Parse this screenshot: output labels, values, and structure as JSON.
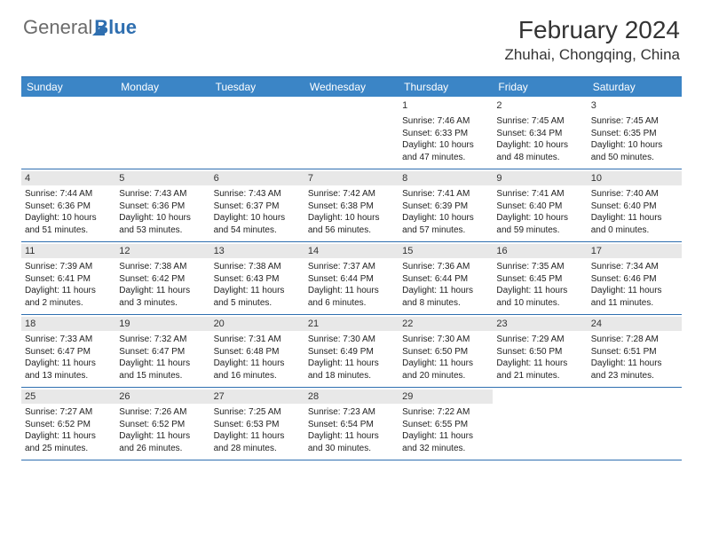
{
  "logo": {
    "text1": "General",
    "text2": "Blue"
  },
  "title": "February 2024",
  "location": "Zhuhai, Chongqing, China",
  "colors": {
    "header_bg": "#3b85c6",
    "border": "#2f6fb0",
    "daynum_bg": "#e8e8e8",
    "text": "#222222"
  },
  "weekdays": [
    "Sunday",
    "Monday",
    "Tuesday",
    "Wednesday",
    "Thursday",
    "Friday",
    "Saturday"
  ],
  "weeks": [
    [
      null,
      null,
      null,
      null,
      {
        "n": "1",
        "sr": "Sunrise: 7:46 AM",
        "ss": "Sunset: 6:33 PM",
        "d1": "Daylight: 10 hours",
        "d2": "and 47 minutes."
      },
      {
        "n": "2",
        "sr": "Sunrise: 7:45 AM",
        "ss": "Sunset: 6:34 PM",
        "d1": "Daylight: 10 hours",
        "d2": "and 48 minutes."
      },
      {
        "n": "3",
        "sr": "Sunrise: 7:45 AM",
        "ss": "Sunset: 6:35 PM",
        "d1": "Daylight: 10 hours",
        "d2": "and 50 minutes."
      }
    ],
    [
      {
        "n": "4",
        "sr": "Sunrise: 7:44 AM",
        "ss": "Sunset: 6:36 PM",
        "d1": "Daylight: 10 hours",
        "d2": "and 51 minutes."
      },
      {
        "n": "5",
        "sr": "Sunrise: 7:43 AM",
        "ss": "Sunset: 6:36 PM",
        "d1": "Daylight: 10 hours",
        "d2": "and 53 minutes."
      },
      {
        "n": "6",
        "sr": "Sunrise: 7:43 AM",
        "ss": "Sunset: 6:37 PM",
        "d1": "Daylight: 10 hours",
        "d2": "and 54 minutes."
      },
      {
        "n": "7",
        "sr": "Sunrise: 7:42 AM",
        "ss": "Sunset: 6:38 PM",
        "d1": "Daylight: 10 hours",
        "d2": "and 56 minutes."
      },
      {
        "n": "8",
        "sr": "Sunrise: 7:41 AM",
        "ss": "Sunset: 6:39 PM",
        "d1": "Daylight: 10 hours",
        "d2": "and 57 minutes."
      },
      {
        "n": "9",
        "sr": "Sunrise: 7:41 AM",
        "ss": "Sunset: 6:40 PM",
        "d1": "Daylight: 10 hours",
        "d2": "and 59 minutes."
      },
      {
        "n": "10",
        "sr": "Sunrise: 7:40 AM",
        "ss": "Sunset: 6:40 PM",
        "d1": "Daylight: 11 hours",
        "d2": "and 0 minutes."
      }
    ],
    [
      {
        "n": "11",
        "sr": "Sunrise: 7:39 AM",
        "ss": "Sunset: 6:41 PM",
        "d1": "Daylight: 11 hours",
        "d2": "and 2 minutes."
      },
      {
        "n": "12",
        "sr": "Sunrise: 7:38 AM",
        "ss": "Sunset: 6:42 PM",
        "d1": "Daylight: 11 hours",
        "d2": "and 3 minutes."
      },
      {
        "n": "13",
        "sr": "Sunrise: 7:38 AM",
        "ss": "Sunset: 6:43 PM",
        "d1": "Daylight: 11 hours",
        "d2": "and 5 minutes."
      },
      {
        "n": "14",
        "sr": "Sunrise: 7:37 AM",
        "ss": "Sunset: 6:44 PM",
        "d1": "Daylight: 11 hours",
        "d2": "and 6 minutes."
      },
      {
        "n": "15",
        "sr": "Sunrise: 7:36 AM",
        "ss": "Sunset: 6:44 PM",
        "d1": "Daylight: 11 hours",
        "d2": "and 8 minutes."
      },
      {
        "n": "16",
        "sr": "Sunrise: 7:35 AM",
        "ss": "Sunset: 6:45 PM",
        "d1": "Daylight: 11 hours",
        "d2": "and 10 minutes."
      },
      {
        "n": "17",
        "sr": "Sunrise: 7:34 AM",
        "ss": "Sunset: 6:46 PM",
        "d1": "Daylight: 11 hours",
        "d2": "and 11 minutes."
      }
    ],
    [
      {
        "n": "18",
        "sr": "Sunrise: 7:33 AM",
        "ss": "Sunset: 6:47 PM",
        "d1": "Daylight: 11 hours",
        "d2": "and 13 minutes."
      },
      {
        "n": "19",
        "sr": "Sunrise: 7:32 AM",
        "ss": "Sunset: 6:47 PM",
        "d1": "Daylight: 11 hours",
        "d2": "and 15 minutes."
      },
      {
        "n": "20",
        "sr": "Sunrise: 7:31 AM",
        "ss": "Sunset: 6:48 PM",
        "d1": "Daylight: 11 hours",
        "d2": "and 16 minutes."
      },
      {
        "n": "21",
        "sr": "Sunrise: 7:30 AM",
        "ss": "Sunset: 6:49 PM",
        "d1": "Daylight: 11 hours",
        "d2": "and 18 minutes."
      },
      {
        "n": "22",
        "sr": "Sunrise: 7:30 AM",
        "ss": "Sunset: 6:50 PM",
        "d1": "Daylight: 11 hours",
        "d2": "and 20 minutes."
      },
      {
        "n": "23",
        "sr": "Sunrise: 7:29 AM",
        "ss": "Sunset: 6:50 PM",
        "d1": "Daylight: 11 hours",
        "d2": "and 21 minutes."
      },
      {
        "n": "24",
        "sr": "Sunrise: 7:28 AM",
        "ss": "Sunset: 6:51 PM",
        "d1": "Daylight: 11 hours",
        "d2": "and 23 minutes."
      }
    ],
    [
      {
        "n": "25",
        "sr": "Sunrise: 7:27 AM",
        "ss": "Sunset: 6:52 PM",
        "d1": "Daylight: 11 hours",
        "d2": "and 25 minutes."
      },
      {
        "n": "26",
        "sr": "Sunrise: 7:26 AM",
        "ss": "Sunset: 6:52 PM",
        "d1": "Daylight: 11 hours",
        "d2": "and 26 minutes."
      },
      {
        "n": "27",
        "sr": "Sunrise: 7:25 AM",
        "ss": "Sunset: 6:53 PM",
        "d1": "Daylight: 11 hours",
        "d2": "and 28 minutes."
      },
      {
        "n": "28",
        "sr": "Sunrise: 7:23 AM",
        "ss": "Sunset: 6:54 PM",
        "d1": "Daylight: 11 hours",
        "d2": "and 30 minutes."
      },
      {
        "n": "29",
        "sr": "Sunrise: 7:22 AM",
        "ss": "Sunset: 6:55 PM",
        "d1": "Daylight: 11 hours",
        "d2": "and 32 minutes."
      },
      null,
      null
    ]
  ]
}
